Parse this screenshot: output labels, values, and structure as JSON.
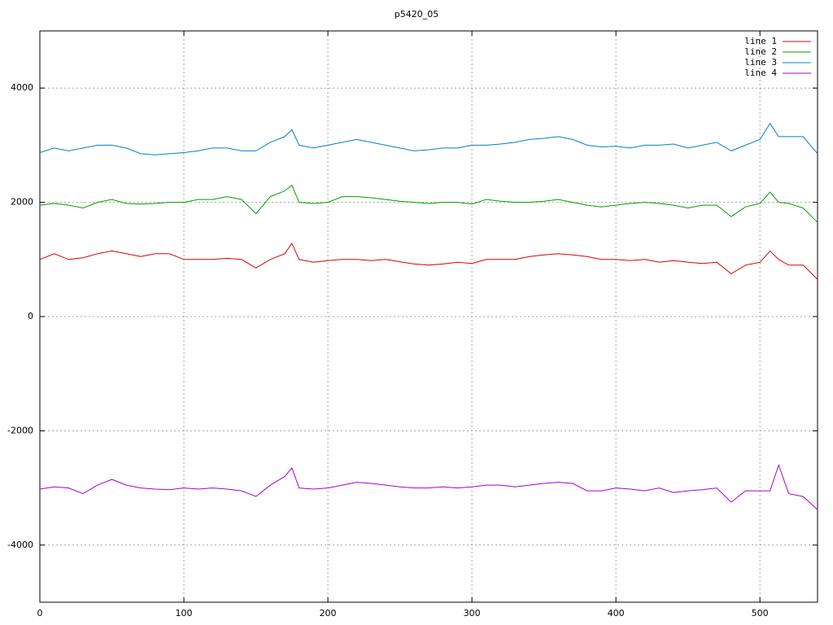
{
  "chart_data": {
    "type": "line",
    "title": "p5420_05",
    "x": [
      0,
      10,
      20,
      30,
      40,
      50,
      60,
      70,
      80,
      90,
      100,
      110,
      120,
      130,
      140,
      150,
      160,
      170,
      175,
      180,
      190,
      200,
      210,
      220,
      230,
      240,
      250,
      260,
      270,
      280,
      290,
      300,
      310,
      320,
      330,
      340,
      350,
      360,
      370,
      380,
      390,
      400,
      410,
      420,
      430,
      440,
      450,
      460,
      470,
      480,
      490,
      500,
      507,
      513,
      520,
      530,
      540
    ],
    "series": [
      {
        "name": "line 1",
        "color": "#dd0000",
        "values": [
          1000,
          1100,
          1000,
          1030,
          1100,
          1150,
          1100,
          1050,
          1100,
          1100,
          1000,
          1000,
          1000,
          1020,
          1000,
          850,
          1000,
          1100,
          1280,
          1000,
          950,
          980,
          1000,
          1000,
          980,
          1000,
          960,
          920,
          900,
          920,
          950,
          930,
          1000,
          1000,
          1000,
          1050,
          1080,
          1100,
          1080,
          1050,
          1000,
          1000,
          980,
          1000,
          950,
          980,
          950,
          930,
          950,
          750,
          900,
          950,
          1150,
          1000,
          900,
          900,
          650
        ]
      },
      {
        "name": "line 2",
        "color": "#00a000",
        "values": [
          1950,
          1980,
          1950,
          1900,
          2000,
          2050,
          1980,
          1970,
          1980,
          2000,
          2000,
          2050,
          2050,
          2100,
          2050,
          1800,
          2100,
          2200,
          2300,
          2000,
          1980,
          2000,
          2100,
          2100,
          2080,
          2050,
          2020,
          2000,
          1980,
          2000,
          2000,
          1970,
          2050,
          2020,
          2000,
          2000,
          2020,
          2050,
          2000,
          1950,
          1920,
          1950,
          1980,
          2000,
          1980,
          1950,
          1900,
          1950,
          1950,
          1750,
          1920,
          1980,
          2180,
          2000,
          1980,
          1900,
          1650
        ]
      },
      {
        "name": "line 3",
        "color": "#0080cc",
        "values": [
          2870,
          2950,
          2900,
          2950,
          3000,
          3000,
          2950,
          2850,
          2830,
          2850,
          2870,
          2900,
          2950,
          2950,
          2900,
          2900,
          3050,
          3150,
          3270,
          3000,
          2950,
          3000,
          3050,
          3100,
          3050,
          3000,
          2950,
          2900,
          2920,
          2950,
          2950,
          3000,
          3000,
          3020,
          3050,
          3100,
          3120,
          3150,
          3100,
          3000,
          2970,
          2980,
          2950,
          3000,
          3000,
          3020,
          2950,
          3000,
          3050,
          2900,
          3000,
          3100,
          3380,
          3150,
          3150,
          3150,
          2850
        ]
      },
      {
        "name": "line 4",
        "color": "#aa00cc",
        "values": [
          -3020,
          -2980,
          -3000,
          -3100,
          -2950,
          -2850,
          -2950,
          -3000,
          -3020,
          -3030,
          -3000,
          -3020,
          -3000,
          -3020,
          -3050,
          -3150,
          -2950,
          -2800,
          -2650,
          -3000,
          -3020,
          -3000,
          -2950,
          -2900,
          -2920,
          -2950,
          -2980,
          -3000,
          -3000,
          -2980,
          -3000,
          -2980,
          -2950,
          -2950,
          -2980,
          -2950,
          -2920,
          -2900,
          -2920,
          -3050,
          -3050,
          -3000,
          -3020,
          -3050,
          -3000,
          -3080,
          -3050,
          -3030,
          -3000,
          -3250,
          -3050,
          -3050,
          -3050,
          -2600,
          -3100,
          -3150,
          -3380
        ]
      }
    ],
    "xlim": [
      0,
      540
    ],
    "xticks": [
      0,
      100,
      200,
      300,
      400,
      500
    ],
    "ylim": [
      -5000,
      5000
    ],
    "yticks": [
      -4000,
      -2000,
      0,
      2000,
      4000
    ],
    "grid": true,
    "legend": "top-right"
  }
}
